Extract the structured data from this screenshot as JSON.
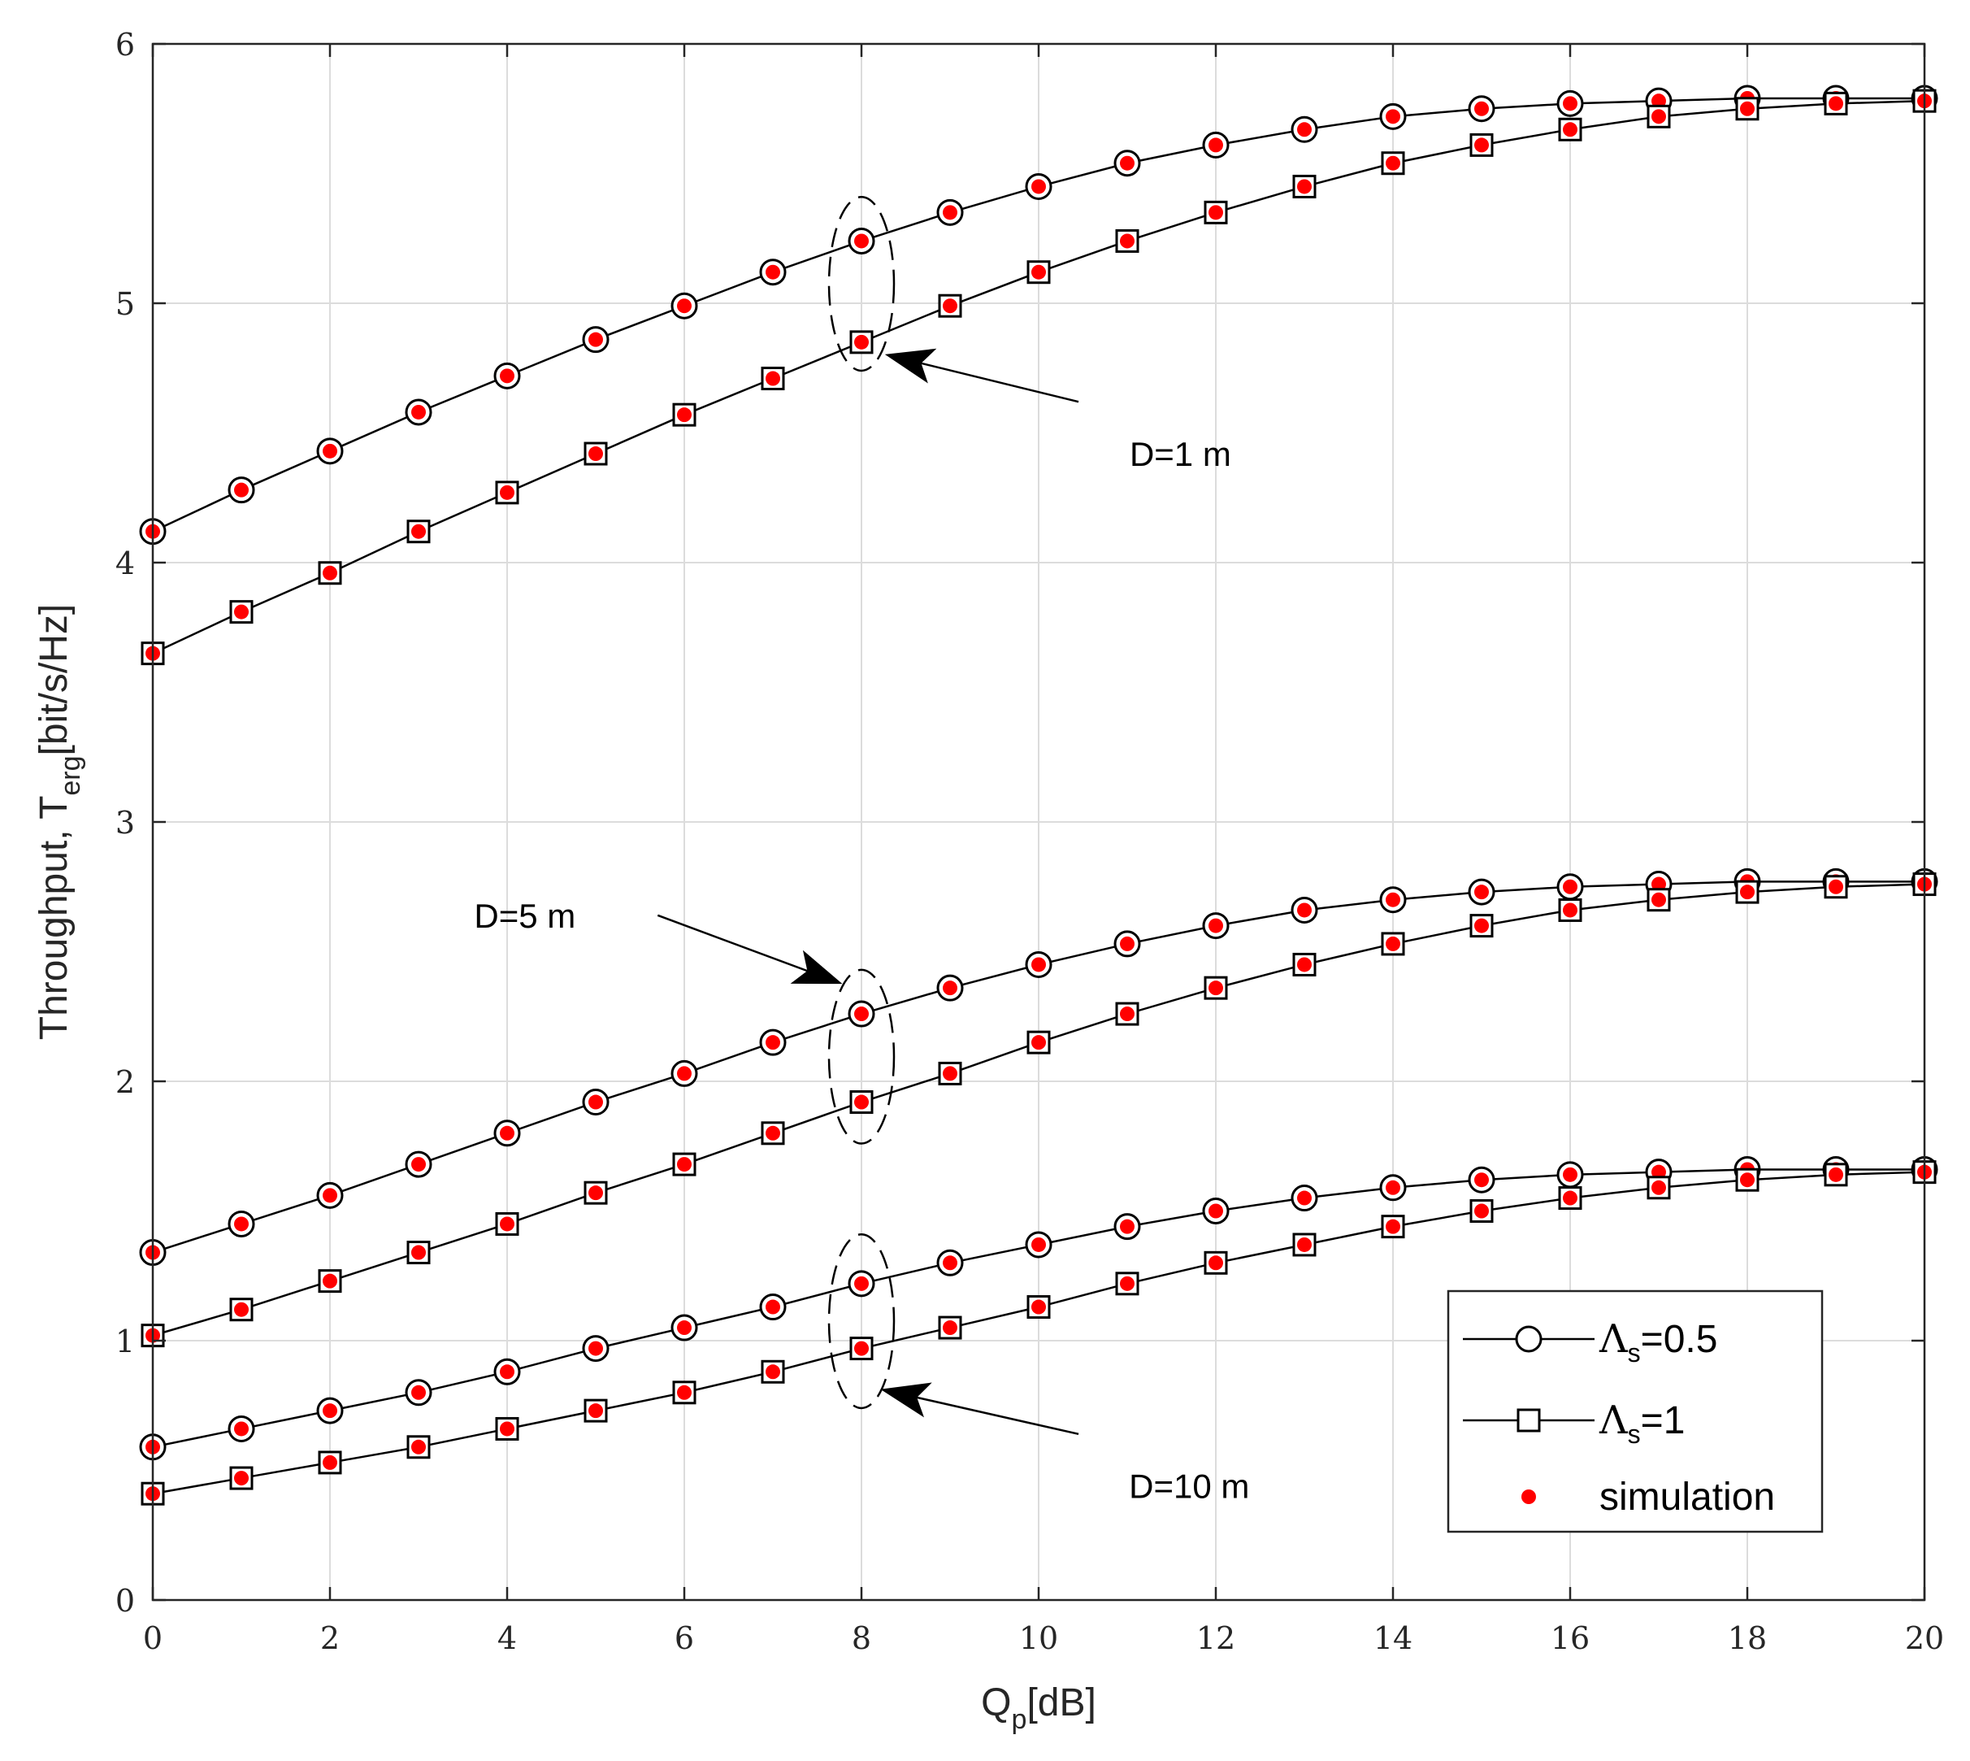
{
  "chart_data": {
    "type": "line",
    "title": "",
    "xlabel": {
      "main": "Q",
      "sub": "p",
      "rest": "[dB]"
    },
    "ylabel": {
      "main": "Throughput, T",
      "sub": "erg",
      "rest": "[bit/s/Hz]"
    },
    "xlim": [
      0,
      20
    ],
    "ylim": [
      0,
      6
    ],
    "xticks": [
      0,
      2,
      4,
      6,
      8,
      10,
      12,
      14,
      16,
      18,
      20
    ],
    "yticks": [
      0,
      1,
      2,
      3,
      4,
      5,
      6
    ],
    "grid": true,
    "x": [
      0,
      1,
      2,
      3,
      4,
      5,
      6,
      7,
      8,
      9,
      10,
      11,
      12,
      13,
      14,
      15,
      16,
      17,
      18,
      19,
      20
    ],
    "series": [
      {
        "name": "D=1 m, Λs=0.5",
        "marker": "circle",
        "values": [
          4.12,
          4.28,
          4.43,
          4.58,
          4.72,
          4.86,
          4.99,
          5.12,
          5.24,
          5.35,
          5.45,
          5.54,
          5.61,
          5.67,
          5.72,
          5.75,
          5.77,
          5.78,
          5.79,
          5.79,
          5.79
        ]
      },
      {
        "name": "D=1 m, Λs=1",
        "marker": "square",
        "values": [
          3.65,
          3.81,
          3.96,
          4.12,
          4.27,
          4.42,
          4.57,
          4.71,
          4.85,
          4.99,
          5.12,
          5.24,
          5.35,
          5.45,
          5.54,
          5.61,
          5.67,
          5.72,
          5.75,
          5.77,
          5.78
        ]
      },
      {
        "name": "D=5 m, Λs=0.5",
        "marker": "circle",
        "values": [
          1.34,
          1.45,
          1.56,
          1.68,
          1.8,
          1.92,
          2.03,
          2.15,
          2.26,
          2.36,
          2.45,
          2.53,
          2.6,
          2.66,
          2.7,
          2.73,
          2.75,
          2.76,
          2.77,
          2.77,
          2.77
        ]
      },
      {
        "name": "D=5 m, Λs=1",
        "marker": "square",
        "values": [
          1.02,
          1.12,
          1.23,
          1.34,
          1.45,
          1.57,
          1.68,
          1.8,
          1.92,
          2.03,
          2.15,
          2.26,
          2.36,
          2.45,
          2.53,
          2.6,
          2.66,
          2.7,
          2.73,
          2.75,
          2.76
        ]
      },
      {
        "name": "D=10 m, Λs=0.5",
        "marker": "circle",
        "values": [
          0.59,
          0.66,
          0.73,
          0.8,
          0.88,
          0.97,
          1.05,
          1.13,
          1.22,
          1.3,
          1.37,
          1.44,
          1.5,
          1.55,
          1.59,
          1.62,
          1.64,
          1.65,
          1.66,
          1.66,
          1.66
        ]
      },
      {
        "name": "D=10 m, Λs=1",
        "marker": "square",
        "values": [
          0.41,
          0.47,
          0.53,
          0.59,
          0.66,
          0.73,
          0.8,
          0.88,
          0.97,
          1.05,
          1.13,
          1.22,
          1.3,
          1.37,
          1.44,
          1.5,
          1.55,
          1.59,
          1.62,
          1.64,
          1.65
        ]
      }
    ],
    "annotations": [
      {
        "text": "D=1 m",
        "ellipse_x": 8,
        "ellipse_y": [
          4.74,
          5.41
        ],
        "text_x": 11.6,
        "text_y": 4.42,
        "arrow_from": [
          10.45,
          4.62
        ],
        "arrow_to": [
          8.3,
          4.8
        ]
      },
      {
        "text": "D=5 m",
        "ellipse_x": 8,
        "ellipse_y": [
          1.76,
          2.43
        ],
        "text_x": 4.2,
        "text_y": 2.64,
        "arrow_from": [
          5.7,
          2.64
        ],
        "arrow_to": [
          7.75,
          2.38
        ]
      },
      {
        "text": "D=10 m",
        "ellipse_x": 8,
        "ellipse_y": [
          0.74,
          1.41
        ],
        "text_x": 11.7,
        "text_y": 0.44,
        "arrow_from": [
          10.45,
          0.64
        ],
        "arrow_to": [
          8.25,
          0.81
        ]
      }
    ],
    "legend": {
      "position": "bottom-right",
      "entries": [
        {
          "symbol": "Λ",
          "sub": "s",
          "rest": "=0.5",
          "marker": "circle"
        },
        {
          "symbol": "Λ",
          "sub": "s",
          "rest": "=1",
          "marker": "square"
        },
        {
          "label": "simulation",
          "marker": "dot"
        }
      ]
    },
    "colors": {
      "line": "#000000",
      "simulation": "#ff0000",
      "grid": "#dcdcdc",
      "axis": "#262626"
    }
  }
}
